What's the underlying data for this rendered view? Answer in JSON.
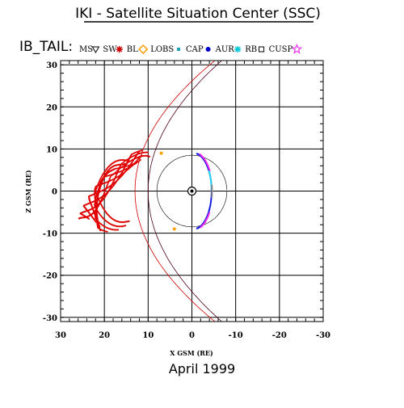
{
  "chart_data": {
    "type": "scatter",
    "title": "IKI - Satellite Situation Center (SSC)",
    "subtitle": "IB_TAIL:",
    "xlabel": "X GSM (RE)",
    "ylabel": "Z GSM (RE)",
    "footer": "April    1999",
    "xlim": [
      30,
      -30
    ],
    "ylim": [
      -31,
      31
    ],
    "x_ticks": [
      "30",
      "20",
      "10",
      "0",
      "-10",
      "-20",
      "-30"
    ],
    "x_tick_values": [
      30,
      20,
      10,
      0,
      -10,
      -20,
      -30
    ],
    "y_ticks": [
      "30",
      "20",
      "10",
      "0",
      "-10",
      "-20",
      "-30"
    ],
    "y_tick_values": [
      30,
      20,
      10,
      0,
      -10,
      -20,
      -30
    ],
    "grid": true,
    "legend_placement": "top",
    "legend": [
      {
        "label": "MS",
        "marker": "triangle-down",
        "color": "#000000"
      },
      {
        "label": "SW",
        "marker": "asterisk",
        "color": "#cc0000"
      },
      {
        "label": "BL",
        "marker": "diamond",
        "color": "#ff9900"
      },
      {
        "label": "LOBS",
        "marker": "square-small",
        "color": "#1fa0c0"
      },
      {
        "label": "CAP",
        "marker": "dot",
        "color": "#0000cc"
      },
      {
        "label": "AUR",
        "marker": "asterisk",
        "color": "#00c8d8"
      },
      {
        "label": "RB",
        "marker": "square",
        "color": "#000000"
      },
      {
        "label": "CUSP",
        "marker": "star",
        "color": "#ee33ee"
      }
    ],
    "earth": {
      "x": 0,
      "y": 0
    },
    "colors": {
      "SW": "#e00000",
      "MS": "#6b1f35",
      "CAP": "#0a14e0",
      "CUSP": "#f030f0",
      "AUR": "#22d8f0",
      "BL": "#ffa000",
      "RB": "#888888",
      "boundary": "#d00000",
      "boundary_dark": "#500020"
    }
  }
}
